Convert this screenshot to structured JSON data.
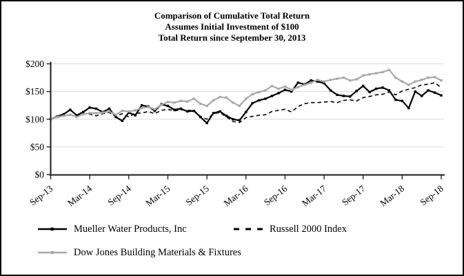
{
  "title": {
    "line1": "Comparison of Cumulative Total Return",
    "line2": "Assumes Initial Investment of $100",
    "line3": "Total Return since September 30, 2013"
  },
  "chart_data": {
    "type": "line",
    "title": "Comparison of Cumulative Total Return",
    "subtitle": "Assumes Initial Investment of $100; Total Return since September 30, 2013",
    "x_unit": "month",
    "x_start": "Sep-13",
    "x_end": "Sep-18",
    "n_points": 61,
    "ylim": [
      0,
      200
    ],
    "grid": true,
    "gridline_color": "#d9d9d9",
    "axis_color": "#1a1a1a",
    "legend_position": "bottom-left",
    "y_ticks": [
      {
        "value": 0,
        "label": "$0"
      },
      {
        "value": 50,
        "label": "$50"
      },
      {
        "value": 100,
        "label": "$100"
      },
      {
        "value": 150,
        "label": "$150"
      },
      {
        "value": 200,
        "label": "$200"
      }
    ],
    "x_ticks": [
      {
        "index": 0,
        "label": "Sep-13"
      },
      {
        "index": 6,
        "label": "Mar-14"
      },
      {
        "index": 12,
        "label": "Sep-14"
      },
      {
        "index": 18,
        "label": "Mar-15"
      },
      {
        "index": 24,
        "label": "Sep-15"
      },
      {
        "index": 30,
        "label": "Mar-16"
      },
      {
        "index": 36,
        "label": "Sep-16"
      },
      {
        "index": 42,
        "label": "Mar-17"
      },
      {
        "index": 48,
        "label": "Sep-17"
      },
      {
        "index": 54,
        "label": "Mar-18"
      },
      {
        "index": 60,
        "label": "Sep-18"
      }
    ],
    "series": [
      {
        "name": "Mueller Water Products, Inc",
        "color": "#000000",
        "style": "solid",
        "marker": true,
        "values": [
          100,
          105,
          109,
          117,
          107,
          113,
          121,
          119,
          113,
          119,
          104,
          97,
          112,
          107,
          125,
          123,
          115,
          127,
          124,
          117,
          119,
          114,
          115,
          104,
          93,
          111,
          114,
          106,
          100,
          98,
          113,
          129,
          134,
          137,
          142,
          147,
          153,
          150,
          166,
          163,
          170,
          168,
          165,
          152,
          144,
          142,
          141,
          151,
          160,
          149,
          155,
          157,
          152,
          135,
          133,
          120,
          150,
          142,
          152,
          148,
          143
        ]
      },
      {
        "name": "Russell 2000 Index",
        "color": "#000000",
        "style": "dashed",
        "marker": false,
        "values": [
          100,
          103,
          106,
          108,
          105,
          110,
          109,
          106,
          110,
          112,
          105,
          110,
          104,
          111,
          111,
          114,
          110,
          116,
          118,
          115,
          117,
          116,
          116,
          105,
          100,
          110,
          112,
          104,
          96,
          94,
          103,
          105,
          107,
          108,
          114,
          116,
          118,
          113,
          123,
          128,
          130,
          130,
          131,
          132,
          130,
          134,
          135,
          133,
          139,
          141,
          144,
          145,
          149,
          144,
          151,
          154,
          157,
          162,
          163,
          166,
          157
        ]
      },
      {
        "name": "Dow Jones Building Materials & Fixtures",
        "color": "#a8a8a8",
        "style": "solid",
        "marker": true,
        "values": [
          100,
          104,
          106,
          108,
          104,
          109,
          111,
          111,
          112,
          114,
          108,
          115,
          114,
          116,
          120,
          122,
          118,
          126,
          131,
          130,
          133,
          132,
          137,
          128,
          124,
          134,
          140,
          139,
          130,
          124,
          137,
          145,
          149,
          152,
          160,
          155,
          159,
          153,
          158,
          162,
          166,
          171,
          168,
          171,
          173,
          175,
          170,
          172,
          179,
          181,
          183,
          185,
          189,
          175,
          168,
          162,
          168,
          171,
          175,
          176,
          170
        ]
      }
    ]
  },
  "legend": {
    "row1_item1": "Mueller Water Products, Inc",
    "row1_item2": "Russell 2000 Index",
    "row2_item1": "Dow Jones Building Materials & Fixtures"
  }
}
